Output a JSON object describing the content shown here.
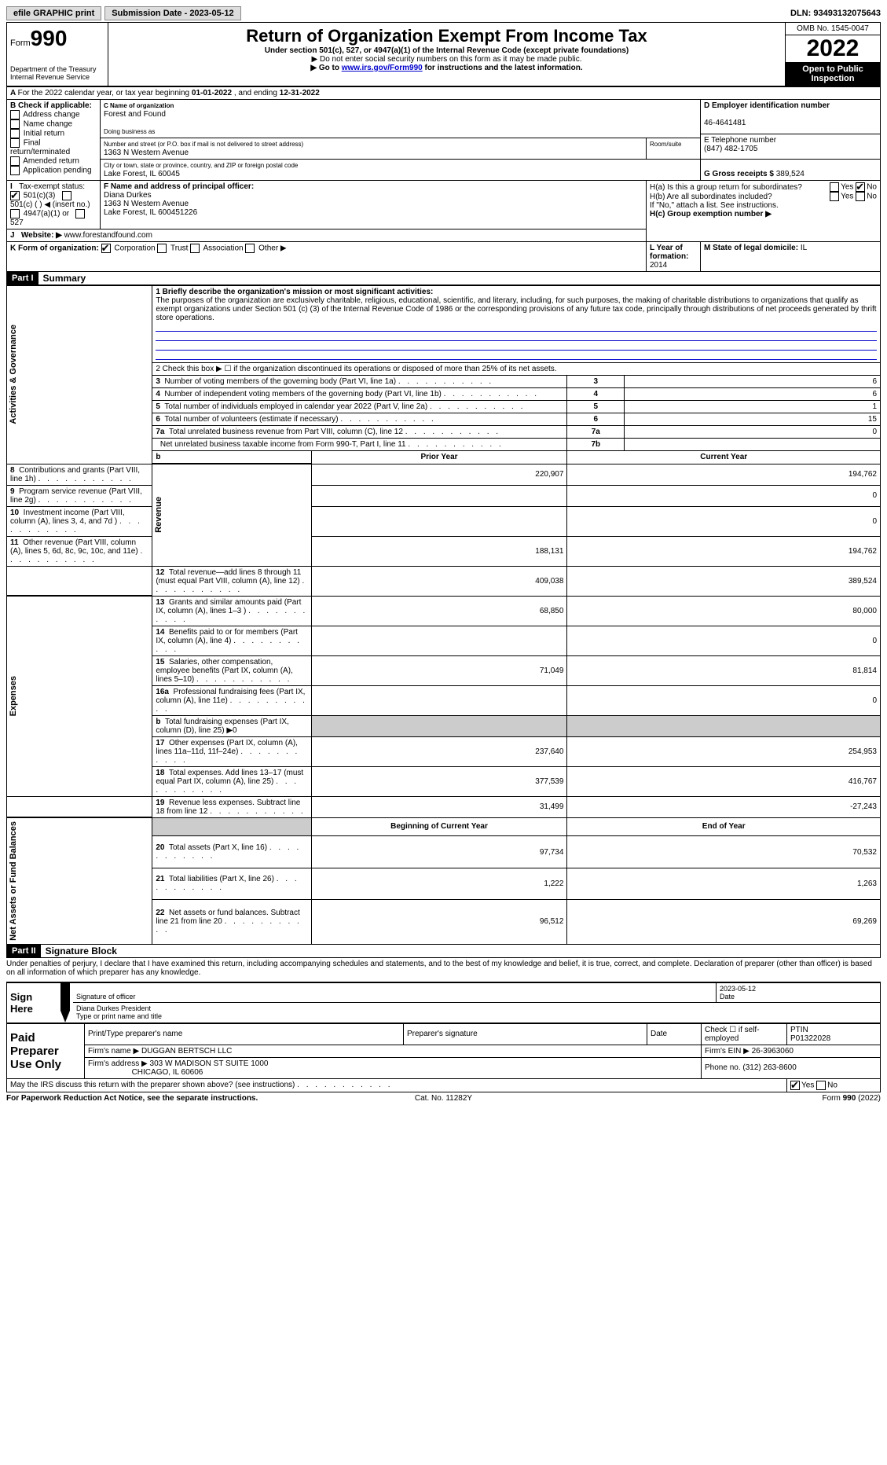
{
  "topbar": {
    "efile": "efile GRAPHIC print",
    "submission_label": "Submission Date - 2023-05-12",
    "dln": "DLN: 93493132075643"
  },
  "header": {
    "form_label": "Form",
    "form_number": "990",
    "dept": "Department of the Treasury Internal Revenue Service",
    "title": "Return of Organization Exempt From Income Tax",
    "sub1": "Under section 501(c), 527, or 4947(a)(1) of the Internal Revenue Code (except private foundations)",
    "sub2": "▶ Do not enter social security numbers on this form as it may be made public.",
    "sub3_a": "▶ Go to ",
    "sub3_link": "www.irs.gov/Form990",
    "sub3_b": " for instructions and the latest information.",
    "omb": "OMB No. 1545-0047",
    "year": "2022",
    "open": "Open to Public Inspection"
  },
  "rowA": {
    "text_a": "For the 2022 calendar year, or tax year beginning ",
    "begin": "01-01-2022",
    "text_b": " , and ending ",
    "end": "12-31-2022"
  },
  "rowB": {
    "label": "B Check if applicable:",
    "opts": [
      "Address change",
      "Name change",
      "Initial return",
      "Final return/terminated",
      "Amended return",
      "Application pending"
    ]
  },
  "rowC": {
    "name_label": "C Name of organization",
    "name": "Forest and Found",
    "dba_label": "Doing business as",
    "addr_label": "Number and street (or P.O. box if mail is not delivered to street address)",
    "addr": "1363 N Western Avenue",
    "room_label": "Room/suite",
    "city_label": "City or town, state or province, country, and ZIP or foreign postal code",
    "city": "Lake Forest, IL  60045"
  },
  "rowD": {
    "label": "D Employer identification number",
    "value": "46-4641481"
  },
  "rowE": {
    "label": "E Telephone number",
    "value": "(847) 482-1705"
  },
  "rowG": {
    "label": "G Gross receipts $",
    "value": "389,524"
  },
  "rowF": {
    "label": "F Name and address of principal officer:",
    "name": "Diana Durkes",
    "addr1": "1363 N Western Avenue",
    "addr2": "Lake Forest, IL  600451226"
  },
  "rowH": {
    "a_label": "H(a)  Is this a group return for subordinates?",
    "b_label": "H(b)  Are all subordinates included?",
    "b_note": "If \"No,\" attach a list. See instructions.",
    "c_label": "H(c)  Group exemption number ▶"
  },
  "rowI": {
    "label": "Tax-exempt status:",
    "opt1": "501(c)(3)",
    "opt2": "501(c) (  ) ◀ (insert no.)",
    "opt3": "4947(a)(1) or",
    "opt4": "527"
  },
  "rowJ": {
    "label": "Website: ▶",
    "value": "www.forestandfound.com"
  },
  "rowK": {
    "label": "K Form of organization:",
    "opts": [
      "Corporation",
      "Trust",
      "Association",
      "Other ▶"
    ]
  },
  "rowL": {
    "label": "L Year of formation:",
    "value": "2014"
  },
  "rowM": {
    "label": "M State of legal domicile:",
    "value": "IL"
  },
  "part1": {
    "header": "Part I",
    "title": "Summary"
  },
  "sections": {
    "s1": "Activities & Governance",
    "s2": "Revenue",
    "s3": "Expenses",
    "s4": "Net Assets or Fund Balances"
  },
  "q1": {
    "label": "1  Briefly describe the organization's mission or most significant activities:",
    "text": "The purposes of the organization are exclusively charitable, religious, educational, scientific, and literary, including, for such purposes, the making of charitable distributions to organizations that qualify as exempt organizations under Section 501 (c) (3) of the Internal Revenue Code of 1986 or the corresponding provisions of any future tax code, principally through distributions of net proceeds generated by thrift store operations."
  },
  "q2": "2  Check this box ▶ ☐  if the organization discontinued its operations or disposed of more than 25% of its net assets.",
  "lines_gov": [
    {
      "n": "3",
      "t": "Number of voting members of the governing body (Part VI, line 1a)",
      "b": "3",
      "v": "6"
    },
    {
      "n": "4",
      "t": "Number of independent voting members of the governing body (Part VI, line 1b)",
      "b": "4",
      "v": "6"
    },
    {
      "n": "5",
      "t": "Total number of individuals employed in calendar year 2022 (Part V, line 2a)",
      "b": "5",
      "v": "1"
    },
    {
      "n": "6",
      "t": "Total number of volunteers (estimate if necessary)",
      "b": "6",
      "v": "15"
    },
    {
      "n": "7a",
      "t": "Total unrelated business revenue from Part VIII, column (C), line 12",
      "b": "7a",
      "v": "0"
    },
    {
      "n": "",
      "t": "Net unrelated business taxable income from Form 990-T, Part I, line 11",
      "b": "7b",
      "v": ""
    }
  ],
  "col_headers": {
    "b": "b",
    "prior": "Prior Year",
    "current": "Current Year",
    "boy": "Beginning of Current Year",
    "eoy": "End of Year"
  },
  "lines_rev": [
    {
      "n": "8",
      "t": "Contributions and grants (Part VIII, line 1h)",
      "p": "220,907",
      "c": "194,762"
    },
    {
      "n": "9",
      "t": "Program service revenue (Part VIII, line 2g)",
      "p": "",
      "c": "0"
    },
    {
      "n": "10",
      "t": "Investment income (Part VIII, column (A), lines 3, 4, and 7d )",
      "p": "",
      "c": "0"
    },
    {
      "n": "11",
      "t": "Other revenue (Part VIII, column (A), lines 5, 6d, 8c, 9c, 10c, and 11e)",
      "p": "188,131",
      "c": "194,762"
    },
    {
      "n": "12",
      "t": "Total revenue—add lines 8 through 11 (must equal Part VIII, column (A), line 12)",
      "p": "409,038",
      "c": "389,524"
    }
  ],
  "lines_exp": [
    {
      "n": "13",
      "t": "Grants and similar amounts paid (Part IX, column (A), lines 1–3 )",
      "p": "68,850",
      "c": "80,000"
    },
    {
      "n": "14",
      "t": "Benefits paid to or for members (Part IX, column (A), line 4)",
      "p": "",
      "c": "0"
    },
    {
      "n": "15",
      "t": "Salaries, other compensation, employee benefits (Part IX, column (A), lines 5–10)",
      "p": "71,049",
      "c": "81,814"
    },
    {
      "n": "16a",
      "t": "Professional fundraising fees (Part IX, column (A), line 11e)",
      "p": "",
      "c": "0"
    },
    {
      "n": "b",
      "t": "Total fundraising expenses (Part IX, column (D), line 25) ▶0",
      "p": "GRAY",
      "c": "GRAY"
    },
    {
      "n": "17",
      "t": "Other expenses (Part IX, column (A), lines 11a–11d, 11f–24e)",
      "p": "237,640",
      "c": "254,953"
    },
    {
      "n": "18",
      "t": "Total expenses. Add lines 13–17 (must equal Part IX, column (A), line 25)",
      "p": "377,539",
      "c": "416,767"
    },
    {
      "n": "19",
      "t": "Revenue less expenses. Subtract line 18 from line 12",
      "p": "31,499",
      "c": "-27,243"
    }
  ],
  "lines_net": [
    {
      "n": "20",
      "t": "Total assets (Part X, line 16)",
      "p": "97,734",
      "c": "70,532"
    },
    {
      "n": "21",
      "t": "Total liabilities (Part X, line 26)",
      "p": "1,222",
      "c": "1,263"
    },
    {
      "n": "22",
      "t": "Net assets or fund balances. Subtract line 21 from line 20",
      "p": "96,512",
      "c": "69,269"
    }
  ],
  "part2": {
    "header": "Part II",
    "title": "Signature Block",
    "decl": "Under penalties of perjury, I declare that I have examined this return, including accompanying schedules and statements, and to the best of my knowledge and belief, it is true, correct, and complete. Declaration of preparer (other than officer) is based on all information of which preparer has any knowledge."
  },
  "sign": {
    "here": "Sign Here",
    "sig_label": "Signature of officer",
    "date": "2023-05-12",
    "date_label": "Date",
    "name": "Diana Durkes  President",
    "name_label": "Type or print name and title"
  },
  "prep": {
    "title": "Paid Preparer Use Only",
    "h1": "Print/Type preparer's name",
    "h2": "Preparer's signature",
    "h3": "Date",
    "h4": "Check ☐ if self-employed",
    "h5_label": "PTIN",
    "h5": "P01322028",
    "firm_label": "Firm's name    ▶",
    "firm": "DUGGAN BERTSCH LLC",
    "ein_label": "Firm's EIN ▶",
    "ein": "26-3963060",
    "addr_label": "Firm's address ▶",
    "addr1": "303 W MADISON ST SUITE 1000",
    "addr2": "CHICAGO, IL  60606",
    "phone_label": "Phone no.",
    "phone": "(312) 263-8600",
    "discuss": "May the IRS discuss this return with the preparer shown above? (see instructions)"
  },
  "footer": {
    "l": "For Paperwork Reduction Act Notice, see the separate instructions.",
    "c": "Cat. No. 11282Y",
    "r": "Form 990 (2022)"
  },
  "yn": {
    "yes": "Yes",
    "no": "No"
  }
}
